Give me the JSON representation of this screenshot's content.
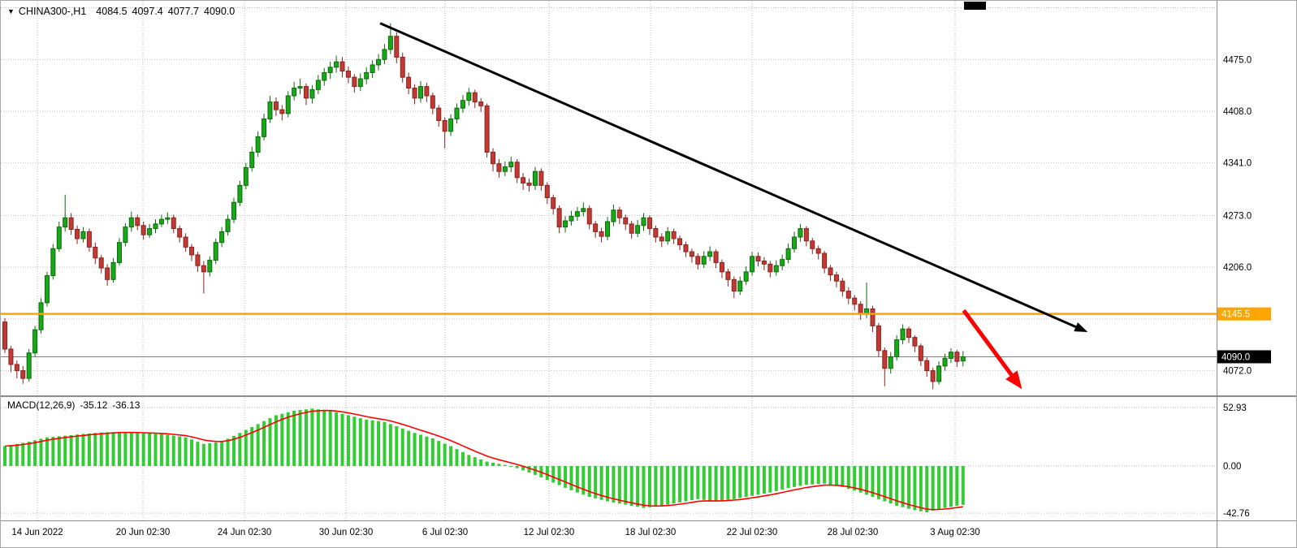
{
  "header": {
    "symbol": "CHINA300-,H1",
    "open": "4084.5",
    "high": "4097.4",
    "low": "4077.7",
    "close": "4090.0"
  },
  "macd_header": {
    "name": "MACD(12,26,9)",
    "main_value": "-35.12",
    "signal_value": "-36.13"
  },
  "price_axis": {
    "labeled_levels": [
      4475.0,
      4408.0,
      4341.0,
      4273.0,
      4206.0,
      4072.0
    ],
    "unlabeled_gridlines": [
      4542.0,
      4139.0
    ],
    "orange_level": 4145.5,
    "orange_label": "4145.5",
    "current_price": 4090.0,
    "current_label": "4090.0"
  },
  "macd_axis": {
    "levels": [
      52.93,
      0.0,
      -42.76
    ],
    "labels": [
      "52.93",
      "0.00",
      "-42.76"
    ]
  },
  "time_axis": {
    "labels": [
      "14 Jun 2022",
      "20 Jun 02:30",
      "24 Jun 02:30",
      "30 Jun 02:30",
      "6 Jul 02:30",
      "12 Jul 02:30",
      "18 Jul 02:30",
      "22 Jul 02:30",
      "28 Jul 02:30",
      "3 Aug 02:30"
    ]
  },
  "colors": {
    "candle_up": "#18A818",
    "candle_up_border": "#0B6B0B",
    "candle_down": "#C23A34",
    "candle_down_border": "#8C211D",
    "macd_histogram": "#33CC33",
    "macd_signal": "#FF0000",
    "grid": "#BEBEBE",
    "divider": "#8C8C8C",
    "axis_text": "#000000",
    "current_price_line": "#808080",
    "current_badge_bg": "#000000",
    "badge_text": "#FFFFFF",
    "resistance": "#FFA500",
    "trendline": "#000000",
    "impulse_arrow": "#FF0000"
  },
  "chart_data": {
    "type": "candlestick",
    "symbol": "CHINA300-",
    "timeframe": "H1",
    "bars": 160,
    "price_axis_range": [
      4040,
      4551
    ],
    "candles": [
      [
        4135,
        4140,
        4095,
        4100
      ],
      [
        4100,
        4104,
        4070,
        4080
      ],
      [
        4080,
        4085,
        4062,
        4072
      ],
      [
        4072,
        4078,
        4055,
        4062
      ],
      [
        4062,
        4100,
        4058,
        4095
      ],
      [
        4095,
        4130,
        4090,
        4125
      ],
      [
        4125,
        4166,
        4120,
        4160
      ],
      [
        4160,
        4200,
        4155,
        4195
      ],
      [
        4195,
        4236,
        4190,
        4230
      ],
      [
        4230,
        4265,
        4226,
        4258
      ],
      [
        4258,
        4300,
        4252,
        4270
      ],
      [
        4270,
        4276,
        4248,
        4255
      ],
      [
        4255,
        4260,
        4236,
        4243
      ],
      [
        4243,
        4258,
        4238,
        4252
      ],
      [
        4252,
        4256,
        4226,
        4232
      ],
      [
        4232,
        4238,
        4210,
        4218
      ],
      [
        4218,
        4222,
        4198,
        4205
      ],
      [
        4205,
        4210,
        4182,
        4190
      ],
      [
        4190,
        4218,
        4186,
        4212
      ],
      [
        4212,
        4244,
        4208,
        4238
      ],
      [
        4238,
        4263,
        4233,
        4258
      ],
      [
        4258,
        4278,
        4252,
        4270
      ],
      [
        4270,
        4274,
        4254,
        4260
      ],
      [
        4260,
        4265,
        4242,
        4248
      ],
      [
        4248,
        4262,
        4244,
        4256
      ],
      [
        4256,
        4268,
        4250,
        4262
      ],
      [
        4262,
        4274,
        4258,
        4268
      ],
      [
        4268,
        4277,
        4262,
        4270
      ],
      [
        4270,
        4274,
        4250,
        4256
      ],
      [
        4256,
        4260,
        4238,
        4245
      ],
      [
        4245,
        4250,
        4226,
        4232
      ],
      [
        4232,
        4236,
        4214,
        4222
      ],
      [
        4222,
        4226,
        4200,
        4208
      ],
      [
        4208,
        4214,
        4172,
        4200
      ],
      [
        4200,
        4220,
        4194,
        4215
      ],
      [
        4215,
        4243,
        4210,
        4238
      ],
      [
        4238,
        4258,
        4232,
        4252
      ],
      [
        4252,
        4274,
        4247,
        4268
      ],
      [
        4268,
        4296,
        4263,
        4290
      ],
      [
        4290,
        4318,
        4285,
        4312
      ],
      [
        4312,
        4341,
        4307,
        4335
      ],
      [
        4335,
        4362,
        4330,
        4355
      ],
      [
        4355,
        4382,
        4349,
        4375
      ],
      [
        4375,
        4405,
        4370,
        4398
      ],
      [
        4398,
        4428,
        4393,
        4420
      ],
      [
        4420,
        4426,
        4402,
        4410
      ],
      [
        4410,
        4416,
        4396,
        4405
      ],
      [
        4405,
        4434,
        4400,
        4428
      ],
      [
        4428,
        4446,
        4422,
        4438
      ],
      [
        4438,
        4450,
        4430,
        4440
      ],
      [
        4440,
        4444,
        4416,
        4425
      ],
      [
        4425,
        4442,
        4418,
        4436
      ],
      [
        4436,
        4455,
        4430,
        4448
      ],
      [
        4448,
        4464,
        4441,
        4458
      ],
      [
        4458,
        4472,
        4450,
        4465
      ],
      [
        4465,
        4480,
        4458,
        4472
      ],
      [
        4472,
        4478,
        4452,
        4460
      ],
      [
        4460,
        4466,
        4444,
        4452
      ],
      [
        4452,
        4456,
        4432,
        4440
      ],
      [
        4440,
        4457,
        4434,
        4450
      ],
      [
        4450,
        4465,
        4443,
        4458
      ],
      [
        4458,
        4474,
        4451,
        4468
      ],
      [
        4468,
        4482,
        4461,
        4475
      ],
      [
        4475,
        4495,
        4469,
        4488
      ],
      [
        4488,
        4522,
        4482,
        4505
      ],
      [
        4505,
        4510,
        4470,
        4478
      ],
      [
        4478,
        4484,
        4445,
        4452
      ],
      [
        4452,
        4458,
        4430,
        4438
      ],
      [
        4438,
        4443,
        4417,
        4425
      ],
      [
        4425,
        4447,
        4419,
        4440
      ],
      [
        4440,
        4445,
        4420,
        4428
      ],
      [
        4428,
        4432,
        4404,
        4412
      ],
      [
        4412,
        4416,
        4388,
        4396
      ],
      [
        4396,
        4400,
        4360,
        4382
      ],
      [
        4382,
        4404,
        4376,
        4398
      ],
      [
        4398,
        4418,
        4392,
        4412
      ],
      [
        4412,
        4429,
        4406,
        4422
      ],
      [
        4422,
        4438,
        4415,
        4432
      ],
      [
        4432,
        4436,
        4412,
        4420
      ],
      [
        4420,
        4425,
        4407,
        4415
      ],
      [
        4415,
        4418,
        4348,
        4355
      ],
      [
        4355,
        4360,
        4330,
        4340
      ],
      [
        4340,
        4346,
        4322,
        4330
      ],
      [
        4330,
        4343,
        4324,
        4336
      ],
      [
        4336,
        4349,
        4329,
        4342
      ],
      [
        4342,
        4346,
        4315,
        4322
      ],
      [
        4322,
        4328,
        4306,
        4315
      ],
      [
        4315,
        4321,
        4304,
        4312
      ],
      [
        4312,
        4336,
        4306,
        4330
      ],
      [
        4330,
        4334,
        4305,
        4312
      ],
      [
        4312,
        4316,
        4288,
        4296
      ],
      [
        4296,
        4300,
        4274,
        4282
      ],
      [
        4282,
        4286,
        4250,
        4258
      ],
      [
        4258,
        4272,
        4251,
        4266
      ],
      [
        4266,
        4279,
        4260,
        4272
      ],
      [
        4272,
        4284,
        4266,
        4278
      ],
      [
        4278,
        4290,
        4272,
        4282
      ],
      [
        4282,
        4286,
        4255,
        4262
      ],
      [
        4262,
        4266,
        4244,
        4252
      ],
      [
        4252,
        4257,
        4238,
        4246
      ],
      [
        4246,
        4271,
        4241,
        4265
      ],
      [
        4265,
        4287,
        4259,
        4280
      ],
      [
        4280,
        4284,
        4262,
        4270
      ],
      [
        4270,
        4274,
        4254,
        4262
      ],
      [
        4262,
        4266,
        4243,
        4250
      ],
      [
        4250,
        4267,
        4245,
        4260
      ],
      [
        4260,
        4276,
        4253,
        4270
      ],
      [
        4270,
        4273,
        4248,
        4256
      ],
      [
        4256,
        4260,
        4238,
        4245
      ],
      [
        4245,
        4250,
        4232,
        4240
      ],
      [
        4240,
        4258,
        4235,
        4252
      ],
      [
        4252,
        4256,
        4236,
        4243
      ],
      [
        4243,
        4247,
        4228,
        4235
      ],
      [
        4235,
        4239,
        4219,
        4226
      ],
      [
        4226,
        4230,
        4212,
        4220
      ],
      [
        4220,
        4224,
        4203,
        4210
      ],
      [
        4210,
        4227,
        4205,
        4220
      ],
      [
        4220,
        4233,
        4214,
        4226
      ],
      [
        4226,
        4229,
        4205,
        4212
      ],
      [
        4212,
        4216,
        4192,
        4200
      ],
      [
        4200,
        4204,
        4181,
        4190
      ],
      [
        4190,
        4194,
        4166,
        4175
      ],
      [
        4175,
        4194,
        4170,
        4188
      ],
      [
        4188,
        4207,
        4183,
        4200
      ],
      [
        4200,
        4226,
        4195,
        4220
      ],
      [
        4220,
        4225,
        4207,
        4214
      ],
      [
        4214,
        4219,
        4202,
        4210
      ],
      [
        4210,
        4214,
        4193,
        4200
      ],
      [
        4200,
        4215,
        4195,
        4208
      ],
      [
        4208,
        4222,
        4202,
        4216
      ],
      [
        4216,
        4237,
        4211,
        4230
      ],
      [
        4230,
        4252,
        4225,
        4245
      ],
      [
        4245,
        4262,
        4239,
        4256
      ],
      [
        4256,
        4259,
        4233,
        4240
      ],
      [
        4240,
        4244,
        4223,
        4230
      ],
      [
        4230,
        4234,
        4216,
        4224
      ],
      [
        4224,
        4227,
        4198,
        4205
      ],
      [
        4205,
        4209,
        4188,
        4196
      ],
      [
        4196,
        4200,
        4180,
        4188
      ],
      [
        4188,
        4192,
        4168,
        4175
      ],
      [
        4175,
        4180,
        4158,
        4166
      ],
      [
        4166,
        4170,
        4150,
        4158
      ],
      [
        4158,
        4162,
        4138,
        4145
      ],
      [
        4145,
        4186,
        4140,
        4152
      ],
      [
        4152,
        4156,
        4122,
        4130
      ],
      [
        4130,
        4134,
        4090,
        4098
      ],
      [
        4098,
        4102,
        4052,
        4075
      ],
      [
        4075,
        4096,
        4068,
        4090
      ],
      [
        4090,
        4118,
        4085,
        4112
      ],
      [
        4112,
        4132,
        4106,
        4126
      ],
      [
        4126,
        4129,
        4108,
        4115
      ],
      [
        4115,
        4118,
        4096,
        4104
      ],
      [
        4104,
        4107,
        4078,
        4085
      ],
      [
        4085,
        4089,
        4064,
        4072
      ],
      [
        4072,
        4076,
        4048,
        4058
      ],
      [
        4058,
        4084,
        4054,
        4078
      ],
      [
        4078,
        4094,
        4072,
        4088
      ],
      [
        4088,
        4101,
        4082,
        4096
      ],
      [
        4096,
        4099,
        4077,
        4084
      ],
      [
        4084.5,
        4097.4,
        4077.7,
        4090.0
      ]
    ],
    "macd": {
      "parameters": [
        12,
        26,
        9
      ],
      "current_macd": -35.12,
      "current_signal": -36.13,
      "axis_range": [
        -42.76,
        52.93
      ],
      "histogram": [
        18,
        19,
        20,
        21,
        22,
        23.3,
        24.7,
        26,
        26.5,
        27,
        27.5,
        28,
        28.5,
        29,
        29.5,
        30,
        30.3,
        30.5,
        30.8,
        31,
        30.7,
        30.3,
        30,
        29.8,
        29.5,
        29.3,
        29,
        28.3,
        27.5,
        26.8,
        26,
        24,
        22,
        20,
        20.7,
        21.3,
        22,
        24.7,
        27.3,
        30,
        32.7,
        35.3,
        38,
        40.7,
        43.3,
        46,
        47.3,
        48.7,
        50,
        50.7,
        51.3,
        52,
        51.3,
        50.7,
        50,
        48.7,
        47.3,
        46,
        44.7,
        43.3,
        42,
        41.3,
        40.7,
        40,
        38,
        36,
        34,
        32,
        30,
        28.3,
        26.7,
        25,
        22.7,
        20.3,
        18,
        15.3,
        12.7,
        10,
        8,
        6,
        4,
        3,
        2,
        1,
        -0.5,
        -2,
        -4,
        -6,
        -8,
        -10.3,
        -12.7,
        -15,
        -17.3,
        -19.7,
        -22,
        -24,
        -26,
        -28,
        -29.3,
        -30.7,
        -32,
        -33,
        -34,
        -35,
        -36,
        -37,
        -38,
        -37.3,
        -36.7,
        -36,
        -35,
        -34,
        -33,
        -32,
        -31,
        -30,
        -30.7,
        -31.3,
        -32,
        -31.3,
        -30.7,
        -30,
        -29,
        -28,
        -27,
        -26,
        -25,
        -24,
        -22.7,
        -21.3,
        -20,
        -19,
        -18,
        -17,
        -16.7,
        -16.3,
        -16,
        -17,
        -18,
        -19,
        -20.7,
        -22.3,
        -24,
        -26,
        -28,
        -30,
        -32,
        -34,
        -36,
        -37.3,
        -38.7,
        -40,
        -41,
        -42,
        -40.5,
        -39,
        -38,
        -37,
        -36,
        -35.12
      ]
    },
    "annotations": {
      "trendline": {
        "color": "#000000",
        "x1_frac": 0.312,
        "price1": 4522,
        "x2_frac": 0.894,
        "price2": 4122
      },
      "impulse_arrow": {
        "color": "#FF0000",
        "x1_frac": 0.792,
        "price1": 4150,
        "x2_frac": 0.84,
        "price2": 4048
      },
      "horizontal_line": {
        "color": "#FFA500",
        "price": 4145.5
      }
    }
  }
}
